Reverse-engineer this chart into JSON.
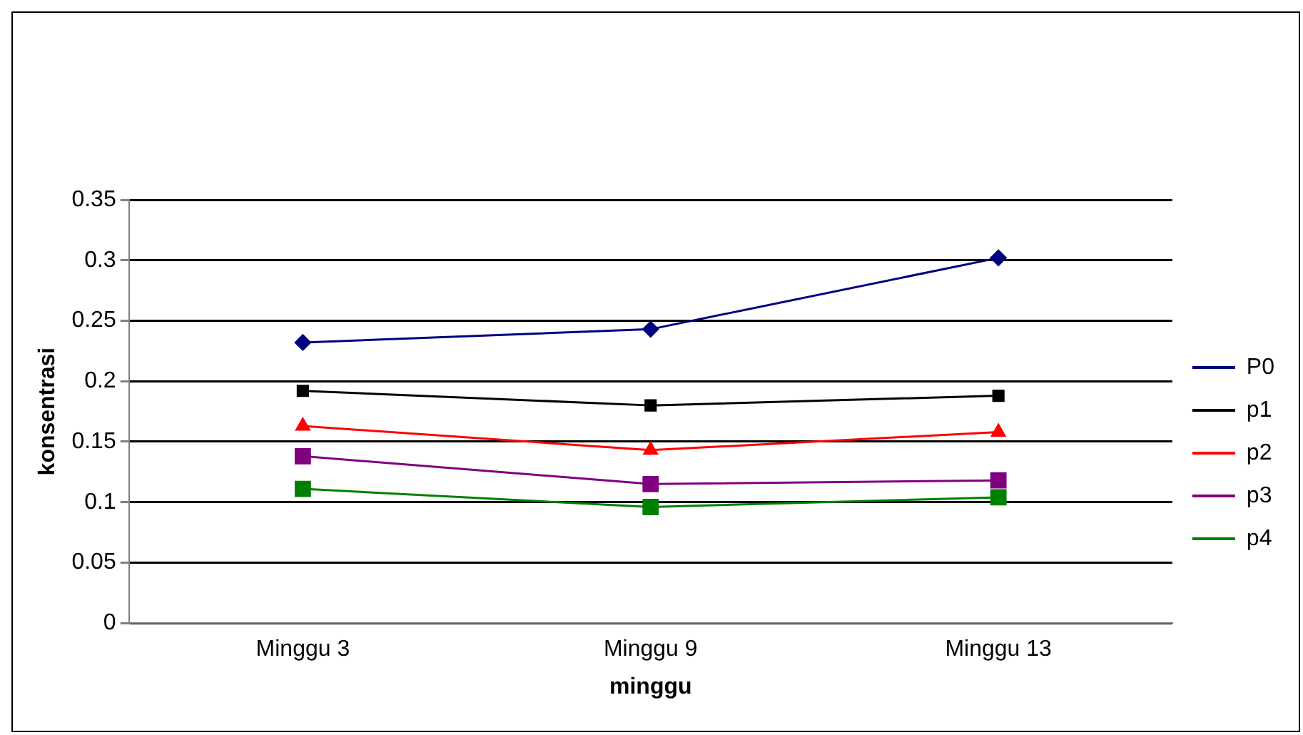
{
  "chart_data": {
    "type": "line",
    "xlabel": "minggu",
    "ylabel": "konsentrasi",
    "categories": [
      "Minggu 3",
      "Minggu 9",
      "Minggu 13"
    ],
    "ylim": [
      0,
      0.35
    ],
    "yticks": [
      0,
      0.05,
      0.1,
      0.15,
      0.2,
      0.25,
      0.3,
      0.35
    ],
    "grid": "y",
    "legend": "right",
    "series": [
      {
        "name": "P0",
        "color": "#000080",
        "marker": "diamond",
        "values": [
          0.232,
          0.243,
          0.302
        ]
      },
      {
        "name": "p1",
        "color": "#000000",
        "marker": "square",
        "values": [
          0.192,
          0.18,
          0.188
        ]
      },
      {
        "name": "p2",
        "color": "#ff0000",
        "marker": "triangle",
        "values": [
          0.163,
          0.143,
          0.158
        ]
      },
      {
        "name": "p3",
        "color": "#800080",
        "marker": "square",
        "values": [
          0.138,
          0.115,
          0.118
        ]
      },
      {
        "name": "p4",
        "color": "#008000",
        "marker": "square",
        "values": [
          0.111,
          0.096,
          0.104
        ]
      }
    ]
  }
}
